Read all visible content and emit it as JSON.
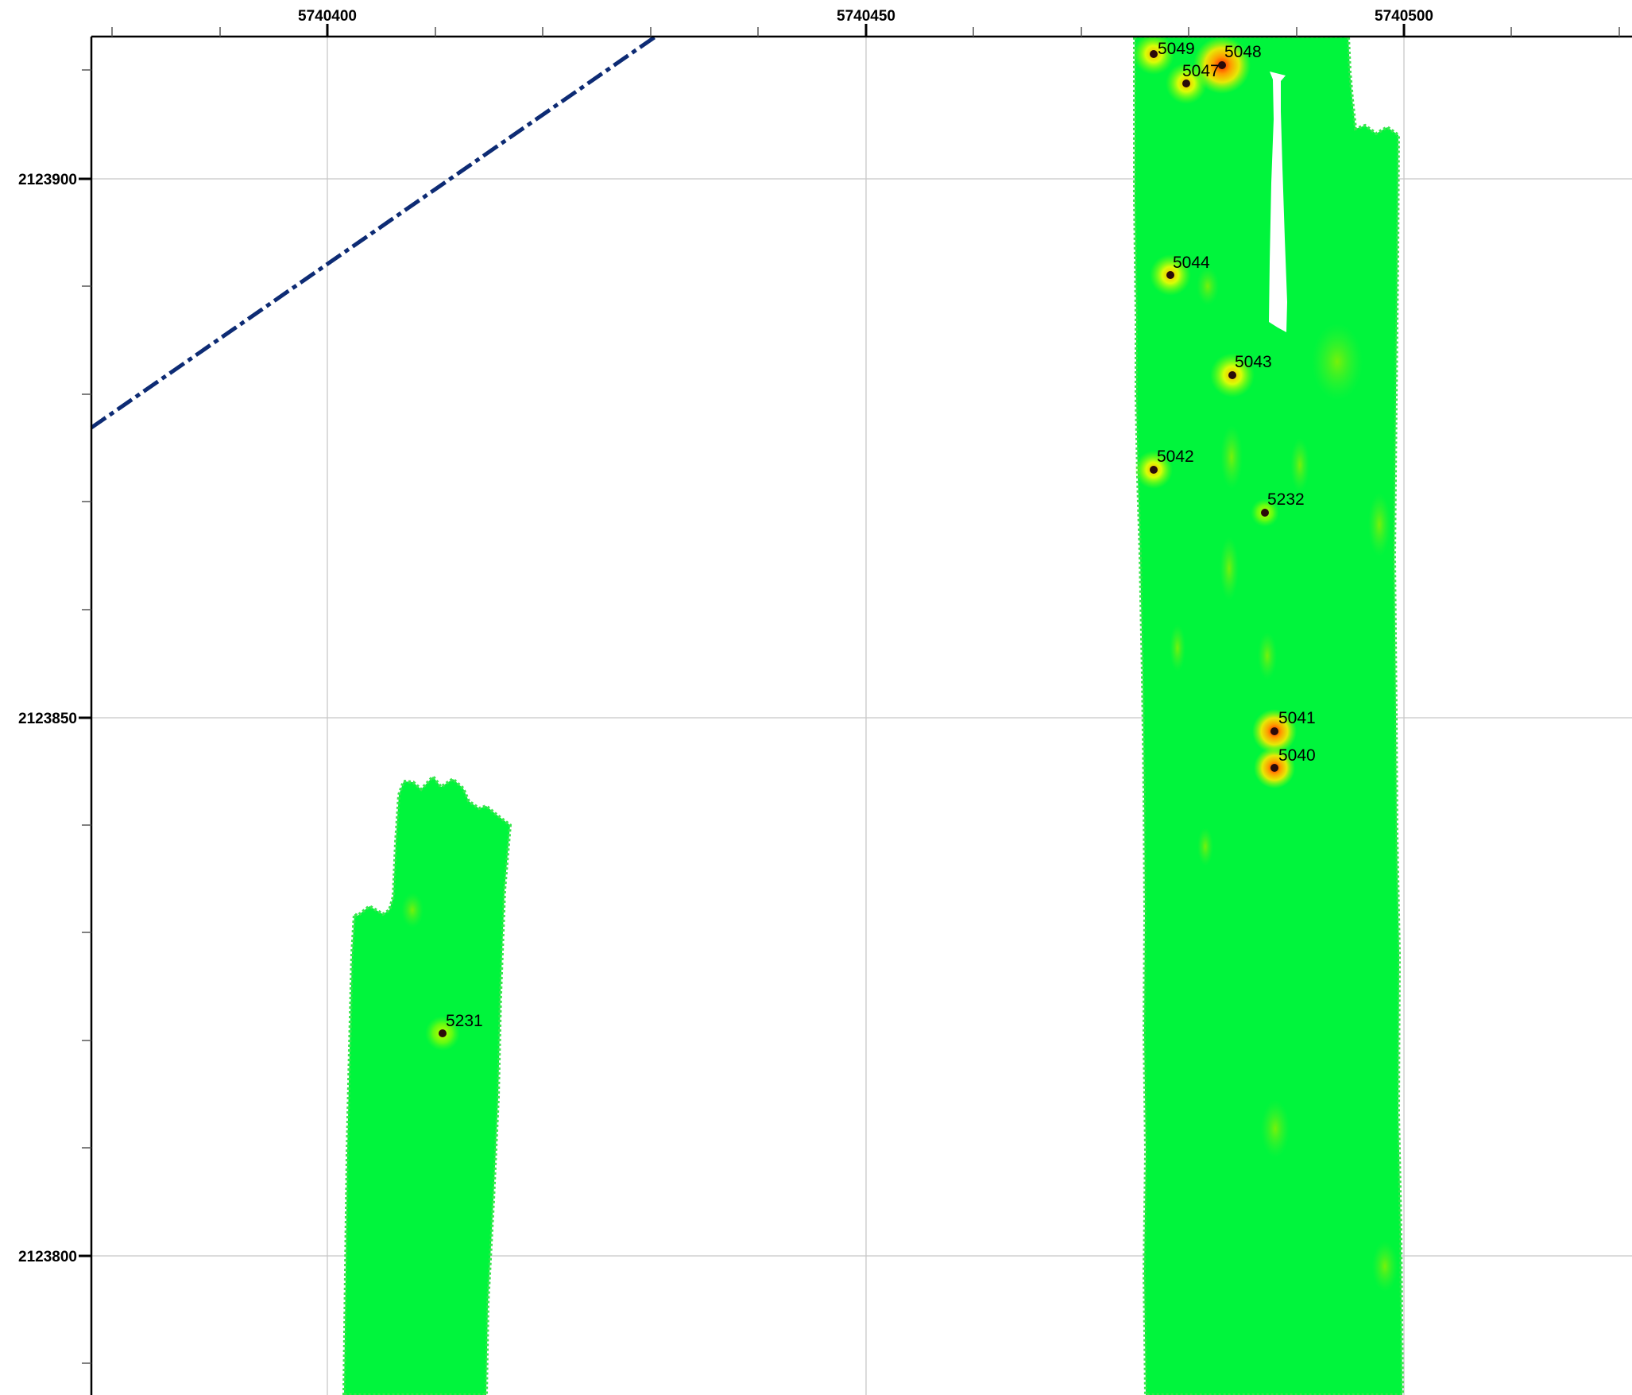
{
  "map": {
    "x_axis": {
      "ticks": [
        "5740400",
        "5740450",
        "5740500"
      ]
    },
    "y_axis": {
      "ticks": [
        "2123900",
        "2123850",
        "2123800"
      ]
    },
    "colors": {
      "coverage_fill": "#00f53c",
      "coverage_edge": "#2ee54a",
      "gridline": "#c8c8c8",
      "frame": "#000000",
      "boundary_line": "#0d2b74",
      "point_marker": "#2a0a0a",
      "hotspot_core": "#ff2a00",
      "hotspot_mid": "#ffd400"
    },
    "points": [
      {
        "label": "5049"
      },
      {
        "label": "5048"
      },
      {
        "label": "5047"
      },
      {
        "label": "5044"
      },
      {
        "label": "5043"
      },
      {
        "label": "5042"
      },
      {
        "label": "5232"
      },
      {
        "label": "5041"
      },
      {
        "label": "5040"
      },
      {
        "label": "5231"
      }
    ]
  }
}
